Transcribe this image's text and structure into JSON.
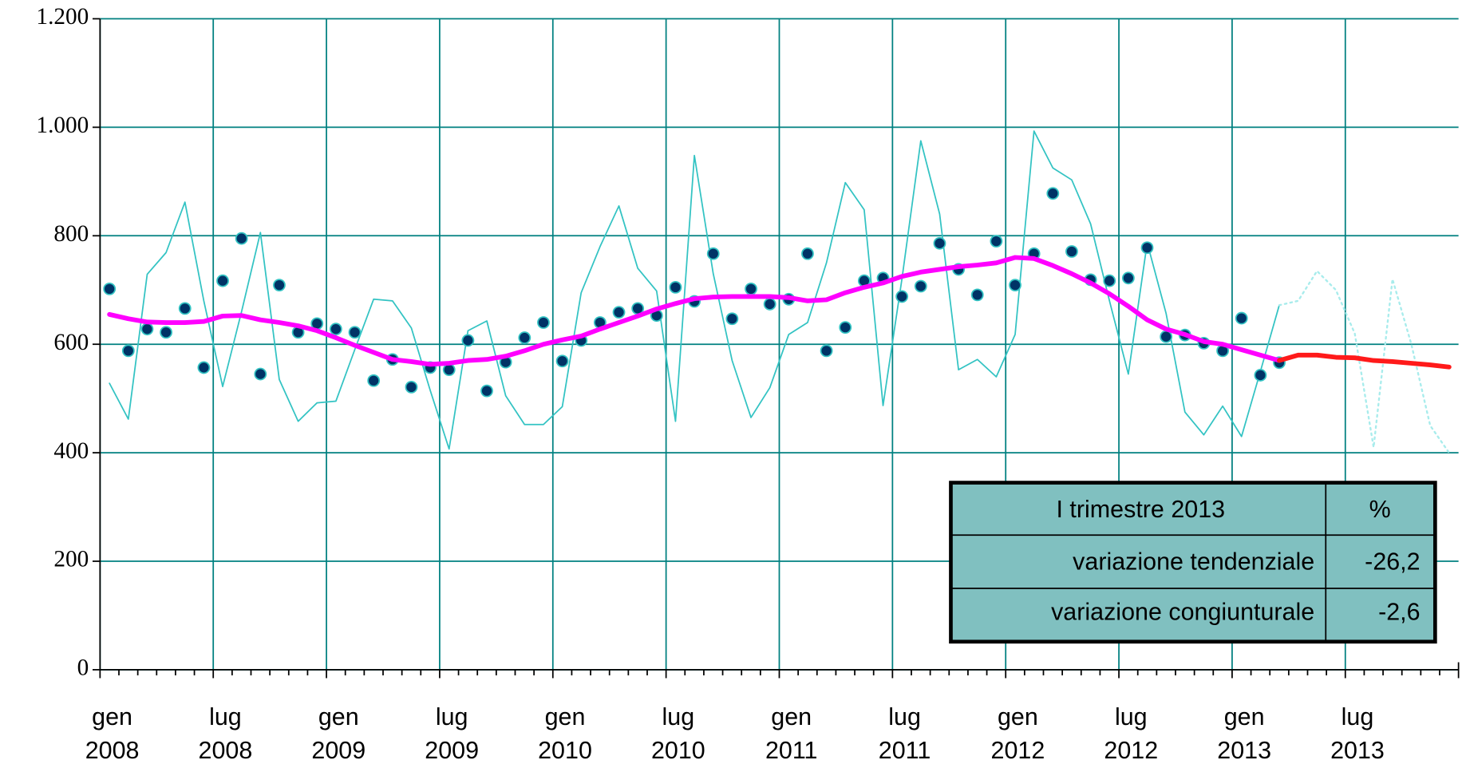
{
  "chart_data": {
    "type": "line",
    "categories": [
      "gen 2008",
      null,
      null,
      null,
      null,
      null,
      "lug 2008",
      null,
      null,
      null,
      null,
      null,
      "gen 2009",
      null,
      null,
      null,
      null,
      null,
      "lug 2009",
      null,
      null,
      null,
      null,
      null,
      "gen 2010",
      null,
      null,
      null,
      null,
      null,
      "lug 2010",
      null,
      null,
      null,
      null,
      null,
      "gen 2011",
      null,
      null,
      null,
      null,
      null,
      "lug 2011",
      null,
      null,
      null,
      null,
      null,
      "gen 2012",
      null,
      null,
      null,
      null,
      null,
      "lug 2012",
      null,
      null,
      null,
      null,
      null,
      "gen 2013",
      null,
      null,
      null,
      null,
      null,
      "lug 2013",
      null,
      null,
      null,
      null,
      null
    ],
    "series": [
      {
        "color": "#33c3c3",
        "line_style": "solid",
        "line_width": 1.5,
        "marker": "none",
        "values": [
          528,
          462,
          729,
          769,
          862,
          680,
          522,
          660,
          806,
          535,
          458,
          492,
          495,
          590,
          683,
          680,
          630,
          515,
          407,
          625,
          643,
          505,
          452,
          452,
          485,
          695,
          780,
          855,
          740,
          698,
          458,
          948,
          730,
          570,
          465,
          520,
          618,
          640,
          750,
          898,
          848,
          487,
          720,
          975,
          840,
          553,
          572,
          540,
          618,
          993,
          925,
          903,
          822,
          680,
          545,
          787,
          657,
          475,
          433,
          486,
          430,
          550,
          672,
          null,
          null,
          null,
          null,
          null,
          null,
          null,
          null,
          null
        ]
      },
      {
        "color": "#a8ecec",
        "line_style": "dotted",
        "line_width": 2,
        "marker": "none",
        "values": [
          null,
          null,
          null,
          null,
          null,
          null,
          null,
          null,
          null,
          null,
          null,
          null,
          null,
          null,
          null,
          null,
          null,
          null,
          null,
          null,
          null,
          null,
          null,
          null,
          null,
          null,
          null,
          null,
          null,
          null,
          null,
          null,
          null,
          null,
          null,
          null,
          null,
          null,
          null,
          null,
          null,
          null,
          null,
          null,
          null,
          null,
          null,
          null,
          null,
          null,
          null,
          null,
          null,
          null,
          null,
          null,
          null,
          null,
          null,
          null,
          null,
          null,
          672,
          680,
          735,
          700,
          620,
          410,
          720,
          600,
          450,
          400
        ]
      },
      {
        "color": "#003366",
        "line_style": "none",
        "line_width": 0,
        "marker": "circle",
        "marker_edge": "#33c3c3",
        "values": [
          702,
          588,
          628,
          622,
          666,
          557,
          717,
          795,
          545,
          709,
          622,
          638,
          628,
          622,
          533,
          572,
          521,
          557,
          553,
          607,
          514,
          567,
          612,
          640,
          569,
          607,
          640,
          659,
          666,
          653,
          705,
          679,
          767,
          647,
          702,
          674,
          683,
          767,
          588,
          631,
          717,
          722,
          688,
          707,
          786,
          738,
          691,
          790,
          709,
          767,
          878,
          771,
          719,
          717,
          722,
          778,
          614,
          617,
          602,
          588,
          648,
          543,
          566,
          null,
          null,
          null,
          null,
          null,
          null,
          null,
          null,
          null
        ]
      },
      {
        "color": "#ff00ff",
        "line_style": "solid",
        "line_width": 5,
        "marker": "none",
        "values": [
          655,
          647,
          641,
          640,
          640,
          642,
          652,
          653,
          645,
          640,
          634,
          625,
          612,
          598,
          585,
          572,
          568,
          563,
          565,
          570,
          572,
          578,
          588,
          600,
          608,
          615,
          628,
          640,
          652,
          665,
          675,
          684,
          687,
          688,
          688,
          688,
          686,
          680,
          682,
          695,
          705,
          713,
          725,
          733,
          738,
          743,
          746,
          750,
          760,
          758,
          745,
          730,
          713,
          693,
          670,
          645,
          628,
          618,
          605,
          600,
          590,
          580,
          570,
          null,
          null,
          null,
          null,
          null,
          null,
          null,
          null,
          null
        ]
      },
      {
        "color": "#ff1a1a",
        "line_style": "solid",
        "line_width": 5,
        "marker": "none",
        "values": [
          null,
          null,
          null,
          null,
          null,
          null,
          null,
          null,
          null,
          null,
          null,
          null,
          null,
          null,
          null,
          null,
          null,
          null,
          null,
          null,
          null,
          null,
          null,
          null,
          null,
          null,
          null,
          null,
          null,
          null,
          null,
          null,
          null,
          null,
          null,
          null,
          null,
          null,
          null,
          null,
          null,
          null,
          null,
          null,
          null,
          null,
          null,
          null,
          null,
          null,
          null,
          null,
          null,
          null,
          null,
          null,
          null,
          null,
          null,
          null,
          null,
          null,
          570,
          580,
          580,
          576,
          575,
          570,
          568,
          565,
          562,
          558
        ]
      }
    ],
    "ylim": [
      0,
      1200
    ],
    "yticks": [
      0,
      200,
      400,
      600,
      800,
      {
        "value": 1000,
        "label": "1.000"
      },
      {
        "value": 1200,
        "label": "1.200"
      }
    ],
    "grid": true,
    "grid_color": "#008080"
  },
  "table": {
    "rows": [
      [
        "I trimestre 2013",
        "%"
      ],
      [
        "variazione tendenziale",
        "-26,2"
      ],
      [
        "variazione congiunturale",
        "-2,6"
      ]
    ]
  }
}
